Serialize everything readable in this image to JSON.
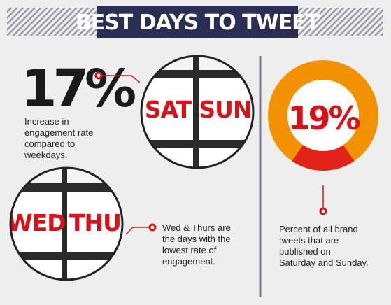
{
  "header": {
    "title": "BEST DAYS TO TWEET"
  },
  "stat": {
    "label": "17%",
    "text": [
      "Increase in",
      "engagement rate",
      "compared to",
      "weekdays."
    ]
  },
  "weekend_tiles": [
    "SAT",
    "SUN"
  ],
  "weekday_tiles": [
    "WED",
    "THU"
  ],
  "weekday_text": [
    "Wed & Thurs are",
    "the days with the",
    "lowest rate of",
    "engagement."
  ],
  "donut": {
    "value": 19,
    "label": "19%",
    "text": [
      "Percent of all brand",
      "tweets that are",
      "published on",
      "Saturday and Sunday."
    ]
  }
}
